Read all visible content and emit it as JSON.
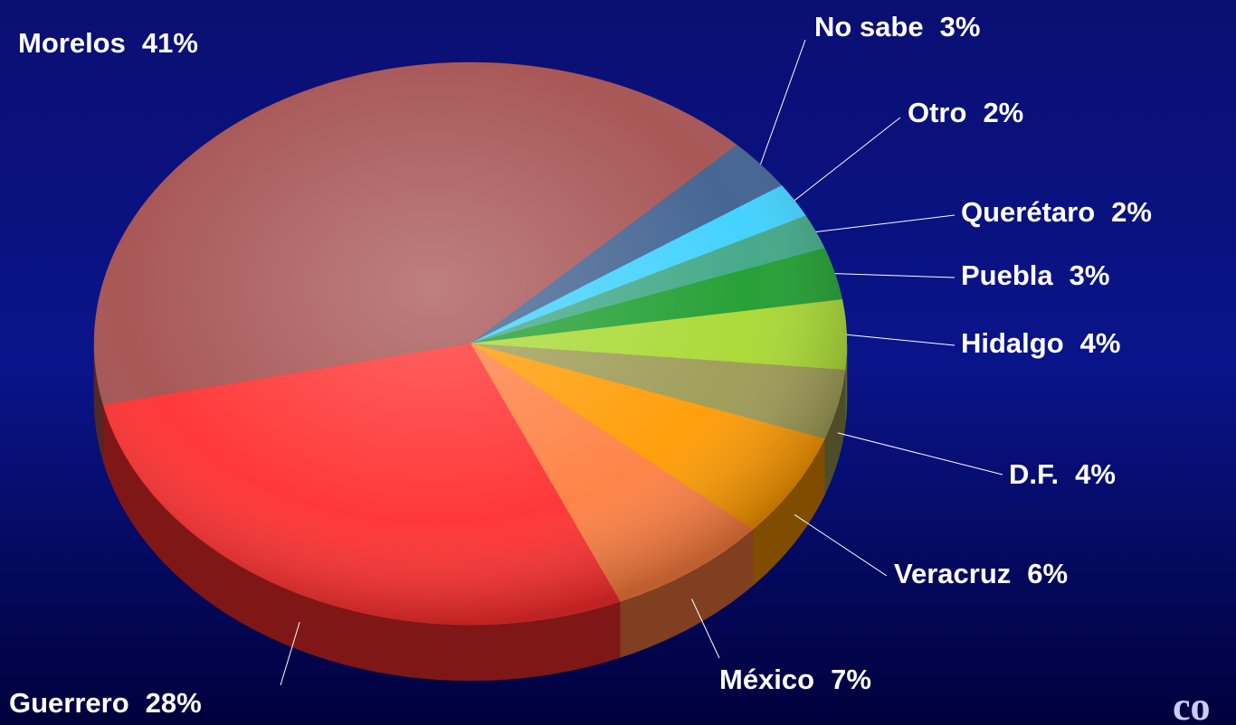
{
  "chart_data": {
    "type": "pie",
    "categories": [
      "No sabe",
      "Otro",
      "Querétaro",
      "Puebla",
      "Hidalgo",
      "D.F.",
      "Veracruz",
      "México",
      "Guerrero",
      "Morelos"
    ],
    "values": [
      3,
      2,
      2,
      3,
      4,
      4,
      6,
      7,
      28,
      41
    ],
    "value_labels": [
      "3%",
      "2%",
      "2%",
      "3%",
      "4%",
      "4%",
      "6%",
      "7%",
      "28%",
      "41%"
    ],
    "colors": [
      "#3c5e8e",
      "#3cd0ff",
      "#3ea684",
      "#1c9c2c",
      "#a8d830",
      "#9c9a52",
      "#ff9a00",
      "#ff7e40",
      "#ff2e2e",
      "#a44e4e"
    ],
    "logo_text": "co"
  }
}
